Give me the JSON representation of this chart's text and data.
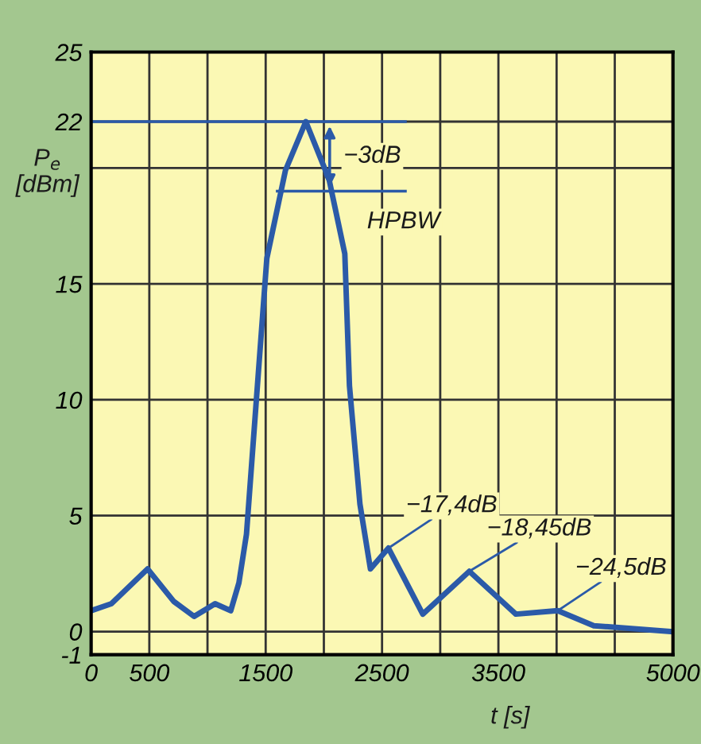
{
  "chart_data": {
    "type": "line",
    "xlabel": "t [s]",
    "ylabel": "P$_{e}$\n[dBm]",
    "x": [
      0,
      174,
      485,
      710,
      885,
      1065,
      1200,
      1270,
      1335,
      1420,
      1510,
      1670,
      1845,
      2045,
      2180,
      2220,
      2310,
      2400,
      2555,
      2850,
      3250,
      3650,
      4010,
      4320,
      4990
    ],
    "series": [
      {
        "color": "#2b5aa8",
        "values": [
          0.9,
          1.2,
          2.7,
          1.3,
          0.65,
          1.2,
          0.9,
          2.1,
          4.2,
          10,
          16.1,
          19.9,
          22,
          19.5,
          16.3,
          10.6,
          5.5,
          2.7,
          3.6,
          0.75,
          2.6,
          0.75,
          0.9,
          0.25,
          0
        ]
      }
    ],
    "xlim": [
      0,
      5000
    ],
    "ylim": [
      -1,
      25
    ],
    "xticks": [
      0,
      500,
      {
        "value": 1000,
        "label": null
      },
      1500,
      {
        "value": 2000,
        "label": null
      },
      2500,
      {
        "value": 3000,
        "label": null
      },
      3500,
      {
        "value": 4000,
        "label": null
      },
      {
        "value": 4500,
        "label": null
      },
      5000
    ],
    "yticks": [
      -1,
      0,
      5,
      10,
      15,
      {
        "value": 20,
        "label": null
      },
      22,
      25
    ],
    "ref_lines": [
      {
        "axis": "y",
        "value": 22,
        "label": null,
        "color": "#2b5aa8"
      },
      {
        "axis": "y",
        "value": 19,
        "label": "HPBW",
        "color": "#2b5aa8"
      }
    ],
    "annotations": [
      {
        "text": "−3dB",
        "x": 2050,
        "y": 20.5
      },
      {
        "text": "−17,4dB",
        "x": 2555,
        "y": 3.6
      },
      {
        "text": "−18,45dB",
        "x": 3250,
        "y": 2.6
      },
      {
        "text": "−24,5dB",
        "x": 4010,
        "y": 0.9
      }
    ],
    "grid": true,
    "marker": "none",
    "line_style": "solid"
  }
}
